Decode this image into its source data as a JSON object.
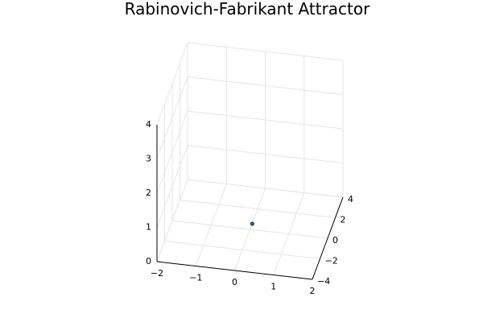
{
  "chart_data": {
    "type": "scatter",
    "title": "Rabinovich-Fabrikant Attractor",
    "dimensions": 3,
    "x_range": [
      -2,
      2
    ],
    "y_range": [
      -4,
      4
    ],
    "z_range": [
      0,
      4
    ],
    "x_ticks": [
      -2,
      -1,
      0,
      1,
      2
    ],
    "y_ticks": [
      -4,
      -2,
      0,
      2,
      4
    ],
    "z_ticks": [
      0,
      1,
      2,
      3,
      4
    ],
    "x_tick_labels": [
      "−2",
      "−1",
      "0",
      "1",
      "2"
    ],
    "y_tick_labels": [
      "−4",
      "−2",
      "0",
      "2",
      "4"
    ],
    "z_tick_labels": [
      "0",
      "1",
      "2",
      "3",
      "4"
    ],
    "grid": true,
    "legend": "none",
    "series": [
      {
        "points": [
          {
            "x": 0.05,
            "y": 0.1,
            "z": 0.14
          }
        ],
        "marker": "circle",
        "color": "#1f77b4"
      }
    ]
  }
}
